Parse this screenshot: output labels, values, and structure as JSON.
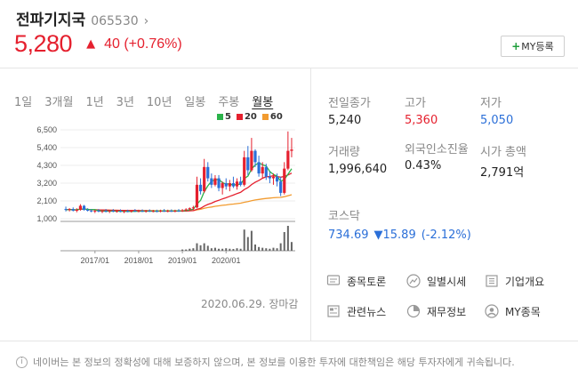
{
  "stock": {
    "name": "전파기지국",
    "code": "065530",
    "price": "5,280",
    "change": "40",
    "change_pct": "(+0.76%)"
  },
  "my_button": {
    "label": "MY등록"
  },
  "tabs": [
    "1일",
    "3개월",
    "1년",
    "3년",
    "10년",
    "일봉",
    "주봉",
    "월봉"
  ],
  "active_tab": "월봉",
  "chart_data": {
    "type": "candlestick",
    "legend": [
      {
        "name": "5",
        "color": "#2bb34a"
      },
      {
        "name": "20",
        "color": "#e5202e"
      },
      {
        "name": "60",
        "color": "#f29b2f"
      }
    ],
    "y_ticks": [
      "6,500",
      "5,400",
      "4,300",
      "3,200",
      "2,100",
      "1,000"
    ],
    "ylim": [
      1000,
      6500
    ],
    "x_ticks": [
      "2017/01",
      "2018/01",
      "2019/01",
      "2020/01"
    ],
    "candles": [
      {
        "o": 1600,
        "h": 1750,
        "l": 1450,
        "c": 1550
      },
      {
        "o": 1550,
        "h": 1650,
        "l": 1450,
        "c": 1600
      },
      {
        "o": 1600,
        "h": 1700,
        "l": 1450,
        "c": 1500
      },
      {
        "o": 1500,
        "h": 1650,
        "l": 1400,
        "c": 1550
      },
      {
        "o": 1550,
        "h": 1900,
        "l": 1500,
        "c": 1800
      },
      {
        "o": 1800,
        "h": 1850,
        "l": 1500,
        "c": 1550
      },
      {
        "o": 1550,
        "h": 1650,
        "l": 1450,
        "c": 1500
      },
      {
        "o": 1500,
        "h": 1600,
        "l": 1400,
        "c": 1450
      },
      {
        "o": 1450,
        "h": 1550,
        "l": 1350,
        "c": 1500
      },
      {
        "o": 1500,
        "h": 1600,
        "l": 1400,
        "c": 1450
      },
      {
        "o": 1450,
        "h": 1550,
        "l": 1350,
        "c": 1480
      },
      {
        "o": 1480,
        "h": 1600,
        "l": 1400,
        "c": 1450
      },
      {
        "o": 1450,
        "h": 1550,
        "l": 1350,
        "c": 1500
      },
      {
        "o": 1500,
        "h": 1600,
        "l": 1400,
        "c": 1450
      },
      {
        "o": 1450,
        "h": 1550,
        "l": 1380,
        "c": 1480
      },
      {
        "o": 1480,
        "h": 1580,
        "l": 1400,
        "c": 1420
      },
      {
        "o": 1420,
        "h": 1520,
        "l": 1350,
        "c": 1470
      },
      {
        "o": 1470,
        "h": 1560,
        "l": 1400,
        "c": 1440
      },
      {
        "o": 1440,
        "h": 1540,
        "l": 1380,
        "c": 1500
      },
      {
        "o": 1500,
        "h": 1600,
        "l": 1420,
        "c": 1460
      },
      {
        "o": 1460,
        "h": 1560,
        "l": 1400,
        "c": 1480
      },
      {
        "o": 1480,
        "h": 1580,
        "l": 1420,
        "c": 1450
      },
      {
        "o": 1450,
        "h": 1550,
        "l": 1380,
        "c": 1490
      },
      {
        "o": 1490,
        "h": 1580,
        "l": 1420,
        "c": 1460
      },
      {
        "o": 1460,
        "h": 1550,
        "l": 1400,
        "c": 1480
      },
      {
        "o": 1480,
        "h": 1560,
        "l": 1400,
        "c": 1450
      },
      {
        "o": 1450,
        "h": 1560,
        "l": 1400,
        "c": 1500
      },
      {
        "o": 1500,
        "h": 1600,
        "l": 1420,
        "c": 1470
      },
      {
        "o": 1470,
        "h": 1560,
        "l": 1400,
        "c": 1490
      },
      {
        "o": 1490,
        "h": 1580,
        "l": 1420,
        "c": 1460
      },
      {
        "o": 1460,
        "h": 1560,
        "l": 1400,
        "c": 1500
      },
      {
        "o": 1500,
        "h": 1600,
        "l": 1420,
        "c": 1480
      },
      {
        "o": 1480,
        "h": 1600,
        "l": 1420,
        "c": 1520
      },
      {
        "o": 1520,
        "h": 1650,
        "l": 1450,
        "c": 1580
      },
      {
        "o": 1580,
        "h": 1700,
        "l": 1500,
        "c": 1650
      },
      {
        "o": 1650,
        "h": 1800,
        "l": 1550,
        "c": 1700
      },
      {
        "o": 1700,
        "h": 3600,
        "l": 1650,
        "c": 3100
      },
      {
        "o": 3100,
        "h": 3500,
        "l": 2500,
        "c": 2700
      },
      {
        "o": 2700,
        "h": 4700,
        "l": 2600,
        "c": 4200
      },
      {
        "o": 4200,
        "h": 4500,
        "l": 3300,
        "c": 3500
      },
      {
        "o": 3500,
        "h": 3800,
        "l": 2900,
        "c": 3100
      },
      {
        "o": 3100,
        "h": 3700,
        "l": 3000,
        "c": 3500
      },
      {
        "o": 3500,
        "h": 3700,
        "l": 2700,
        "c": 2900
      },
      {
        "o": 2900,
        "h": 3300,
        "l": 2500,
        "c": 3200
      },
      {
        "o": 3200,
        "h": 3500,
        "l": 2800,
        "c": 3000
      },
      {
        "o": 3000,
        "h": 3400,
        "l": 2700,
        "c": 3200
      },
      {
        "o": 3200,
        "h": 3600,
        "l": 2900,
        "c": 3000
      },
      {
        "o": 3000,
        "h": 3500,
        "l": 2800,
        "c": 3300
      },
      {
        "o": 3300,
        "h": 3600,
        "l": 3000,
        "c": 3100
      },
      {
        "o": 3100,
        "h": 5200,
        "l": 3000,
        "c": 4800
      },
      {
        "o": 4800,
        "h": 5500,
        "l": 3700,
        "c": 4000
      },
      {
        "o": 4000,
        "h": 6000,
        "l": 3900,
        "c": 5200
      },
      {
        "o": 5200,
        "h": 5300,
        "l": 4200,
        "c": 4500
      },
      {
        "o": 4500,
        "h": 4900,
        "l": 3600,
        "c": 3800
      },
      {
        "o": 3800,
        "h": 4500,
        "l": 3500,
        "c": 4200
      },
      {
        "o": 4200,
        "h": 4400,
        "l": 3400,
        "c": 3600
      },
      {
        "o": 3600,
        "h": 3900,
        "l": 3200,
        "c": 3500
      },
      {
        "o": 3500,
        "h": 3800,
        "l": 3100,
        "c": 3600
      },
      {
        "o": 3600,
        "h": 3800,
        "l": 3000,
        "c": 3300
      },
      {
        "o": 3300,
        "h": 3600,
        "l": 2400,
        "c": 2600
      },
      {
        "o": 2600,
        "h": 4500,
        "l": 2500,
        "c": 4100
      },
      {
        "o": 4100,
        "h": 6400,
        "l": 4000,
        "c": 5200
      },
      {
        "o": 5200,
        "h": 6000,
        "l": 4800,
        "c": 5280
      }
    ],
    "volumes": [
      0,
      0,
      0,
      0,
      0,
      0,
      0,
      0,
      0,
      0,
      0,
      0,
      0,
      0,
      0,
      0,
      0,
      0,
      0,
      0,
      0,
      0,
      0,
      0,
      0,
      0,
      0,
      0,
      0,
      0,
      0,
      0,
      0.05,
      0.05,
      0.08,
      0.1,
      0.3,
      0.22,
      0.3,
      0.2,
      0.1,
      0.12,
      0.08,
      0.08,
      0.1,
      0.08,
      0.07,
      0.1,
      0.08,
      0.85,
      0.55,
      0.8,
      0.25,
      0.15,
      0.12,
      0.1,
      0.08,
      0.12,
      0.1,
      0.3,
      0.75,
      1.0,
      0.35
    ],
    "date_label": "2020.06.29. 장마감"
  },
  "info": {
    "prev_close_label": "전일종가",
    "prev_close": "5,240",
    "high_label": "고가",
    "high": "5,360",
    "low_label": "저가",
    "low": "5,050",
    "volume_label": "거래량",
    "volume": "1,996,640",
    "foreign_label": "외국인소진율",
    "foreign": "0.43%",
    "mcap_label": "시가 총액",
    "mcap": "2,791억"
  },
  "kosdaq": {
    "label": "코스닥",
    "value": "734.69",
    "change": "▼15.89",
    "pct": "(-2.12%)"
  },
  "links": [
    {
      "label": "종목토론",
      "icon": "chat-icon"
    },
    {
      "label": "일별시세",
      "icon": "trend-icon"
    },
    {
      "label": "기업개요",
      "icon": "list-icon"
    },
    {
      "label": "관련뉴스",
      "icon": "news-icon"
    },
    {
      "label": "재무정보",
      "icon": "pie-icon"
    },
    {
      "label": "MY종목",
      "icon": "user-icon"
    }
  ],
  "footer": "네이버는 본 정보의 정확성에 대해 보증하지 않으며, 본 정보를 이용한 투자에 대한책임은 해당 투자자에게 귀속됩니다.",
  "colors": {
    "up": "#e5202e",
    "down": "#2b6fd8",
    "ma5": "#2bb34a",
    "ma20": "#e5202e",
    "ma60": "#f29b2f"
  }
}
